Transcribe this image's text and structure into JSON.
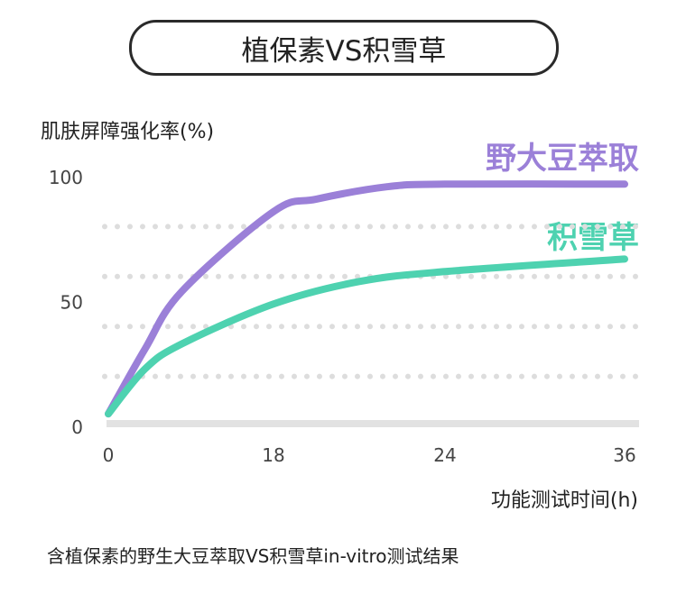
{
  "title": "植保素VS积雪草",
  "caption": "含植保素的野生大豆萃取VS积雪草in-vitro测试结果",
  "colors": {
    "purple": "#9b80d8",
    "green": "#4ed2b0",
    "grid": "#dddddd",
    "axis": "#e2e2e2"
  },
  "chart_data": {
    "type": "line",
    "title": "植保素VS积雪草",
    "ylabel": "肌肤屏障强化率(%)",
    "xlabel": "功能测试时间(h)",
    "ylim": [
      0,
      100
    ],
    "yticks": [
      0,
      50,
      100
    ],
    "ytick_labels": [
      "0",
      "50",
      "100"
    ],
    "xticks": [
      0,
      18,
      24,
      36
    ],
    "xtick_labels": [
      "0",
      "18",
      "24",
      "36"
    ],
    "grid": "dotted horizontal at 20, 40, 60, 80",
    "grid_values": [
      20,
      40,
      60,
      80
    ],
    "series": [
      {
        "name": "野大豆萃取",
        "color": "#9b80d8",
        "points": [
          [
            0,
            5
          ],
          [
            4,
            31
          ],
          [
            8,
            54
          ],
          [
            18,
            86
          ],
          [
            19.5,
            91
          ],
          [
            22,
            96
          ],
          [
            24,
            97
          ],
          [
            36,
            97
          ]
        ]
      },
      {
        "name": "积雪草",
        "color": "#4ed2b0",
        "points": [
          [
            0,
            5
          ],
          [
            4,
            23
          ],
          [
            8,
            33
          ],
          [
            18,
            49
          ],
          [
            21,
            58
          ],
          [
            24,
            62
          ],
          [
            36,
            67
          ]
        ]
      }
    ]
  }
}
